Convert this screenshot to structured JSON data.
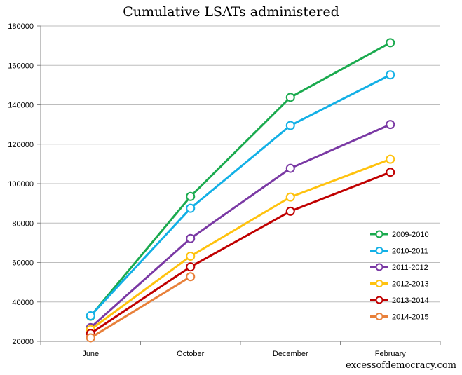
{
  "title": "Cumulative LSATs administered",
  "watermark": "excessofdemocracy.com",
  "chart_data": {
    "type": "line",
    "title": "Cumulative LSATs administered",
    "xlabel": "",
    "ylabel": "",
    "categories": [
      "June",
      "October",
      "December",
      "February"
    ],
    "ylim": [
      20000,
      180000
    ],
    "yticks": [
      20000,
      40000,
      60000,
      80000,
      100000,
      120000,
      140000,
      160000,
      180000
    ],
    "grid": true,
    "legend_position": "bottom-right",
    "series": [
      {
        "name": "2009-2010",
        "color": "#1aaa4e",
        "values": [
          32800,
          93500,
          143800,
          171500
        ]
      },
      {
        "name": "2010-2011",
        "color": "#12b0e6",
        "values": [
          33000,
          87500,
          129500,
          155200
        ]
      },
      {
        "name": "2011-2012",
        "color": "#7a39a4",
        "values": [
          27000,
          72200,
          107800,
          130000
        ]
      },
      {
        "name": "2012-2013",
        "color": "#ffc20e",
        "values": [
          26000,
          63200,
          93200,
          112400
        ]
      },
      {
        "name": "2013-2014",
        "color": "#c00000",
        "values": [
          24000,
          57800,
          86000,
          105800
        ]
      },
      {
        "name": "2014-2015",
        "color": "#e8803a",
        "values": [
          21800,
          52800,
          null,
          null
        ]
      }
    ]
  }
}
